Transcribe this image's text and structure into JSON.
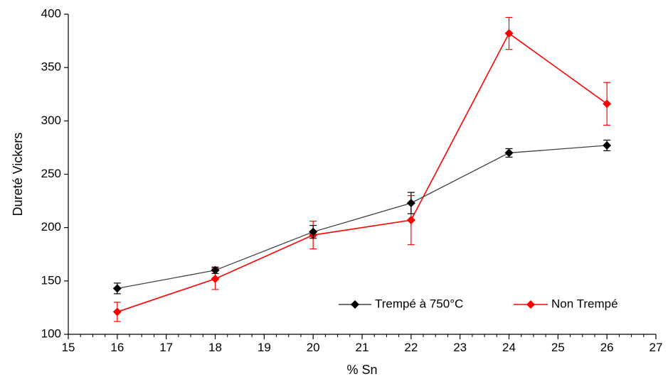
{
  "chart_data": {
    "type": "line",
    "title": "",
    "xlabel": "% Sn",
    "ylabel": "Dureté Vickers",
    "xlim": [
      15,
      27
    ],
    "ylim": [
      100,
      400
    ],
    "xticks": [
      15,
      16,
      17,
      18,
      19,
      20,
      21,
      22,
      23,
      24,
      25,
      26,
      27
    ],
    "yticks": [
      100,
      150,
      200,
      250,
      300,
      350,
      400
    ],
    "x_minor_step": 0.25,
    "grid": false,
    "legend_position": "bottom-right",
    "series": [
      {
        "name": "Trempé à 750°C",
        "color": "#000000",
        "line_color": "#404040",
        "marker": "diamond",
        "x": [
          16,
          18,
          20,
          22,
          24,
          26
        ],
        "y": [
          143,
          160,
          196,
          223,
          270,
          277
        ],
        "err": [
          5,
          3,
          6,
          10,
          4,
          5
        ]
      },
      {
        "name": "Non Trempé",
        "color": "#ff0000",
        "line_color": "#ff0000",
        "marker": "diamond",
        "x": [
          16,
          18,
          20,
          22,
          24,
          26
        ],
        "y": [
          121,
          152,
          193,
          207,
          382,
          316
        ],
        "err": [
          9,
          10,
          13,
          23,
          15,
          20
        ]
      }
    ]
  }
}
